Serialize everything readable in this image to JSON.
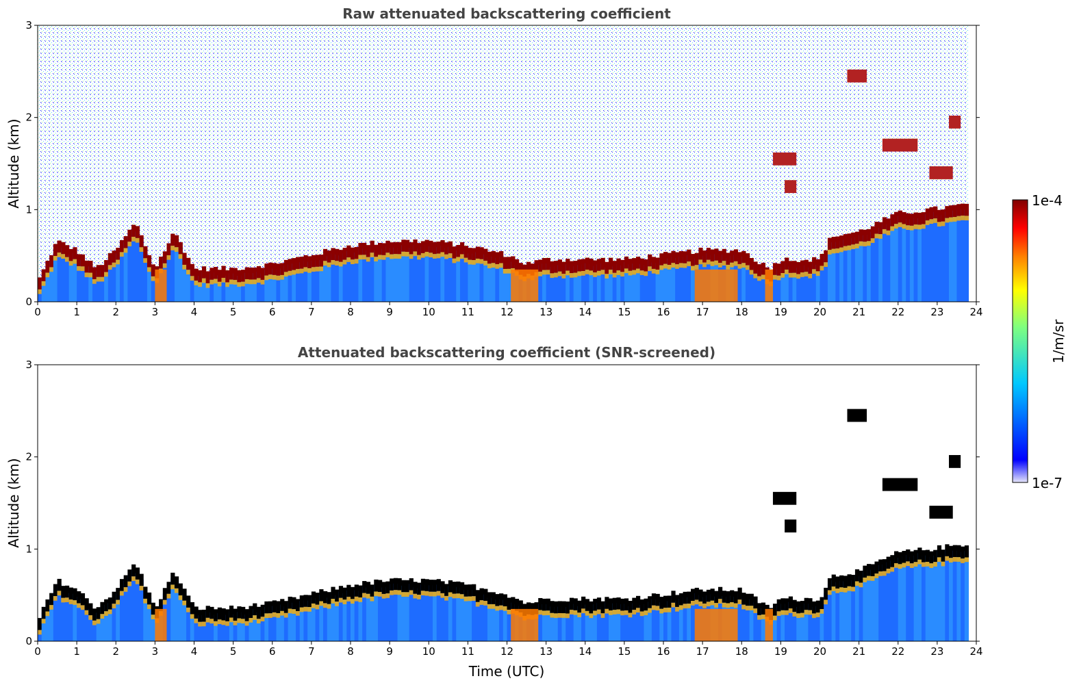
{
  "chart_data": [
    {
      "type": "heatmap",
      "title": "Raw attenuated backscattering coefficient",
      "xlabel": "",
      "ylabel": "Altitude (km)",
      "xlim": [
        0,
        24
      ],
      "ylim": [
        0,
        3
      ],
      "xticks": [
        "0",
        "1",
        "2",
        "3",
        "4",
        "5",
        "6",
        "7",
        "8",
        "9",
        "10",
        "11",
        "12",
        "13",
        "14",
        "15",
        "16",
        "17",
        "18",
        "19",
        "20",
        "21",
        "22",
        "23",
        "24"
      ],
      "yticks": [
        "0",
        "1",
        "2",
        "3"
      ],
      "screened": false,
      "noise_top_km": 3,
      "boundary_layer_top": {
        "time_utc": [
          0,
          0.5,
          1,
          1.5,
          2,
          2.5,
          3,
          3.5,
          4,
          5,
          6,
          7,
          8,
          9,
          10,
          11,
          11.5,
          12,
          12.5,
          13,
          14,
          15,
          16,
          17,
          18,
          18.7,
          19,
          20,
          20.3,
          21,
          21.5,
          22,
          23,
          23.8
        ],
        "altitude_km": [
          0.15,
          0.6,
          0.5,
          0.3,
          0.5,
          0.8,
          0.3,
          0.7,
          0.3,
          0.3,
          0.35,
          0.45,
          0.55,
          0.6,
          0.6,
          0.55,
          0.5,
          0.45,
          0.35,
          0.4,
          0.4,
          0.4,
          0.45,
          0.5,
          0.5,
          0.3,
          0.4,
          0.4,
          0.65,
          0.7,
          0.8,
          0.9,
          0.95,
          1.0
        ]
      },
      "cloud_layers": [
        {
          "t0": 20.7,
          "t1": 21.2,
          "altitude_km": 2.45
        },
        {
          "t0": 21.6,
          "t1": 22.5,
          "altitude_km": 1.7
        },
        {
          "t0": 22.8,
          "t1": 23.4,
          "altitude_km": 1.4
        },
        {
          "t0": 23.3,
          "t1": 23.6,
          "altitude_km": 1.95
        },
        {
          "t0": 18.8,
          "t1": 19.4,
          "altitude_km": 1.55
        },
        {
          "t0": 19.1,
          "t1": 19.4,
          "altitude_km": 1.25
        }
      ]
    },
    {
      "type": "heatmap",
      "title": "Attenuated backscattering coefficient (SNR-screened)",
      "xlabel": "Time (UTC)",
      "ylabel": "Altitude (km)",
      "xlim": [
        0,
        24
      ],
      "ylim": [
        0,
        3
      ],
      "xticks": [
        "0",
        "1",
        "2",
        "3",
        "4",
        "5",
        "6",
        "7",
        "8",
        "9",
        "10",
        "11",
        "12",
        "13",
        "14",
        "15",
        "16",
        "17",
        "18",
        "19",
        "20",
        "21",
        "22",
        "23",
        "24"
      ],
      "yticks": [
        "0",
        "1",
        "2",
        "3"
      ],
      "screened": true
    }
  ],
  "colorbar": {
    "label": "1/m/sr",
    "max_label": "1e-4",
    "min_label": "1e-7",
    "colors": [
      "#e6e6fa",
      "#0000ff",
      "#00c8ff",
      "#7fff7f",
      "#ffff00",
      "#ff8000",
      "#ff0000",
      "#800000"
    ]
  }
}
